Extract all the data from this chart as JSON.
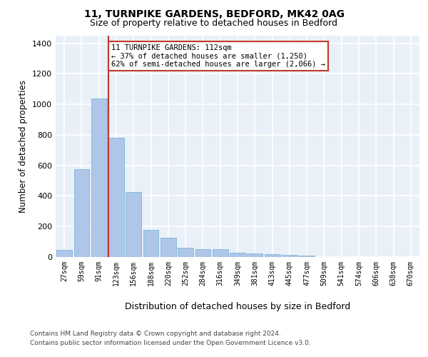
{
  "title1": "11, TURNPIKE GARDENS, BEDFORD, MK42 0AG",
  "title2": "Size of property relative to detached houses in Bedford",
  "xlabel": "Distribution of detached houses by size in Bedford",
  "ylabel": "Number of detached properties",
  "bar_labels": [
    "27sqm",
    "59sqm",
    "91sqm",
    "123sqm",
    "156sqm",
    "188sqm",
    "220sqm",
    "252sqm",
    "284sqm",
    "316sqm",
    "349sqm",
    "381sqm",
    "413sqm",
    "445sqm",
    "477sqm",
    "509sqm",
    "541sqm",
    "574sqm",
    "606sqm",
    "638sqm",
    "670sqm"
  ],
  "bar_values": [
    47,
    575,
    1040,
    780,
    425,
    180,
    125,
    63,
    50,
    50,
    28,
    22,
    18,
    12,
    10,
    0,
    0,
    0,
    0,
    0,
    0
  ],
  "bar_color": "#aec6e8",
  "bar_edge_color": "#6baed6",
  "bg_color": "#eaf0f8",
  "grid_color": "#ffffff",
  "vline_color": "#c0392b",
  "annotation_text": "11 TURNPIKE GARDENS: 112sqm\n← 37% of detached houses are smaller (1,250)\n62% of semi-detached houses are larger (2,066) →",
  "annotation_box_color": "#c0392b",
  "ylim": [
    0,
    1450
  ],
  "yticks": [
    0,
    200,
    400,
    600,
    800,
    1000,
    1200,
    1400
  ],
  "footer1": "Contains HM Land Registry data © Crown copyright and database right 2024.",
  "footer2": "Contains public sector information licensed under the Open Government Licence v3.0."
}
